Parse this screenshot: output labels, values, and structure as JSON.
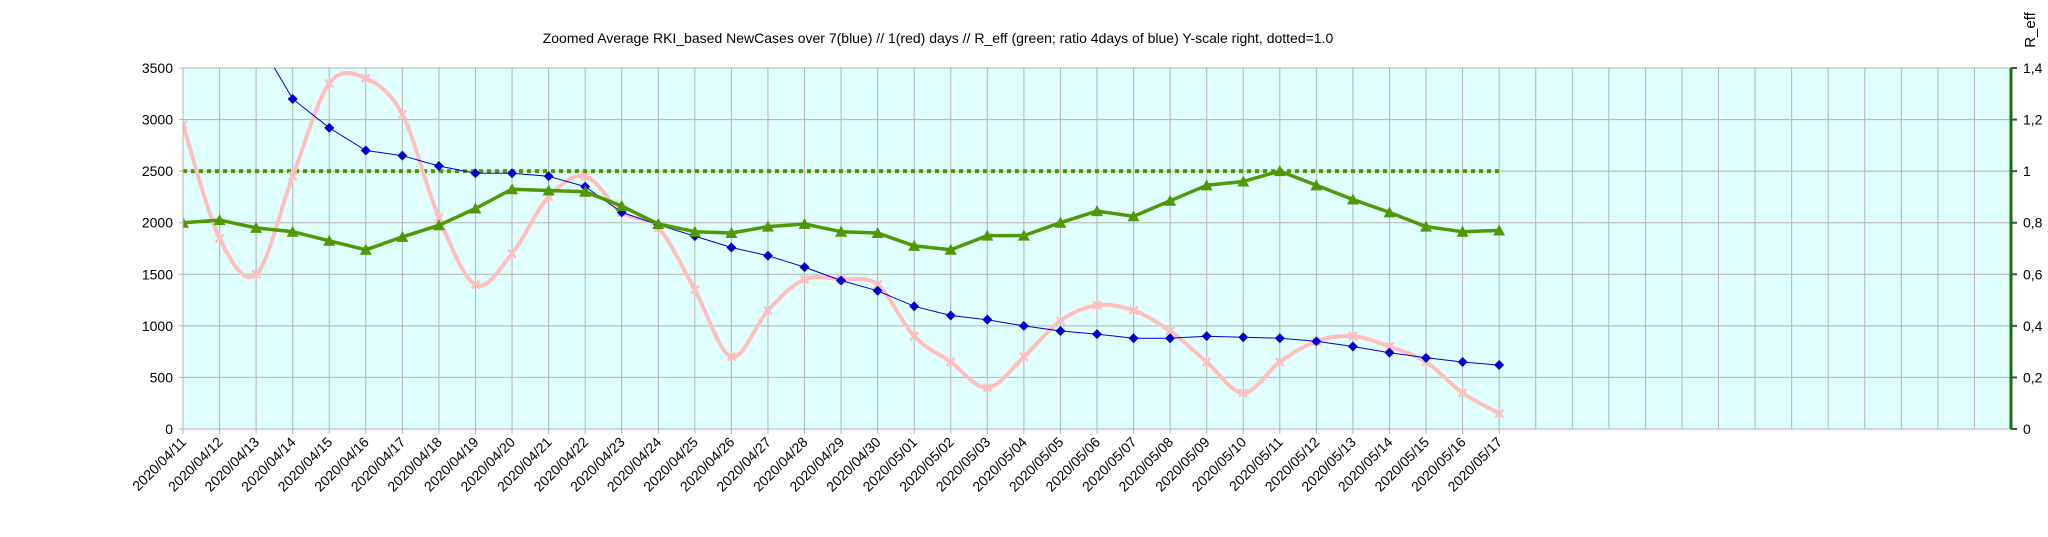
{
  "chart_data": {
    "type": "line",
    "title": "Zoomed Average RKI_based NewCases over 7(blue) // 1(red) days //  R_eff (green; ratio 4days of blue) Y-scale right, dotted=1.0",
    "xlabel": "",
    "ylabel": "",
    "y2label": "R_eff",
    "x": [
      "2020/04/11",
      "2020/04/12",
      "2020/04/13",
      "2020/04/14",
      "2020/04/15",
      "2020/04/16",
      "2020/04/17",
      "2020/04/18",
      "2020/04/19",
      "2020/04/20",
      "2020/04/21",
      "2020/04/22",
      "2020/04/23",
      "2020/04/24",
      "2020/04/25",
      "2020/04/26",
      "2020/04/27",
      "2020/04/28",
      "2020/04/29",
      "2020/04/30",
      "2020/05/01",
      "2020/05/02",
      "2020/05/03",
      "2020/05/04",
      "2020/05/05",
      "2020/05/06",
      "2020/05/07",
      "2020/05/08",
      "2020/05/09",
      "2020/05/10",
      "2020/05/11",
      "2020/05/12",
      "2020/05/13",
      "2020/05/14",
      "2020/05/15",
      "2020/05/16",
      "2020/05/17"
    ],
    "x_slots": 50,
    "ylim": [
      0,
      3500
    ],
    "yticks": [
      "0",
      "500",
      "1000",
      "1500",
      "2000",
      "2500",
      "3000",
      "3500"
    ],
    "y2lim": [
      0,
      1.4
    ],
    "y2ticks": [
      "0",
      "0,2",
      "0,4",
      "0,6",
      "0,8",
      "1",
      "1,2",
      "1,4"
    ],
    "grid": true,
    "legend": "none",
    "background_color": "#e0ffff",
    "grid_color": "#b3b3b3",
    "reference_line": {
      "axis": "y2",
      "value": 1.0,
      "style": "dotted",
      "color": "#4e9a06"
    },
    "series": [
      {
        "axis": "y",
        "color": "#ffbfbf",
        "marker": "x",
        "values": [
          2950,
          1850,
          1500,
          2450,
          3350,
          3400,
          3050,
          2050,
          1400,
          1700,
          2250,
          2450,
          2100,
          1950,
          1350,
          700,
          1150,
          1450,
          1450,
          1400,
          900,
          650,
          400,
          700,
          1050,
          1200,
          1150,
          950,
          650,
          350,
          650,
          850,
          900,
          800,
          650,
          350,
          150
        ]
      },
      {
        "axis": "y",
        "color": "#0000cc",
        "marker": "diamond",
        "values": [
          null,
          null,
          3800,
          3200,
          2920,
          2700,
          2650,
          2550,
          2480,
          2480,
          2450,
          2350,
          2100,
          1980,
          1870,
          1760,
          1680,
          1570,
          1440,
          1340,
          1190,
          1100,
          1060,
          1000,
          950,
          920,
          880,
          880,
          900,
          890,
          880,
          850,
          800,
          740,
          690,
          650,
          620
        ]
      },
      {
        "axis": "y2",
        "color": "#4e9a06",
        "marker": "triangle",
        "values": [
          0.8,
          0.81,
          0.78,
          0.765,
          0.73,
          0.695,
          0.745,
          0.79,
          0.855,
          0.93,
          0.925,
          0.92,
          0.865,
          0.795,
          0.765,
          0.76,
          0.785,
          0.795,
          0.765,
          0.76,
          0.71,
          0.695,
          0.75,
          0.75,
          0.8,
          0.845,
          0.825,
          0.885,
          0.945,
          0.96,
          1.0,
          0.945,
          0.89,
          0.84,
          0.785,
          0.765,
          0.77
        ]
      }
    ]
  }
}
